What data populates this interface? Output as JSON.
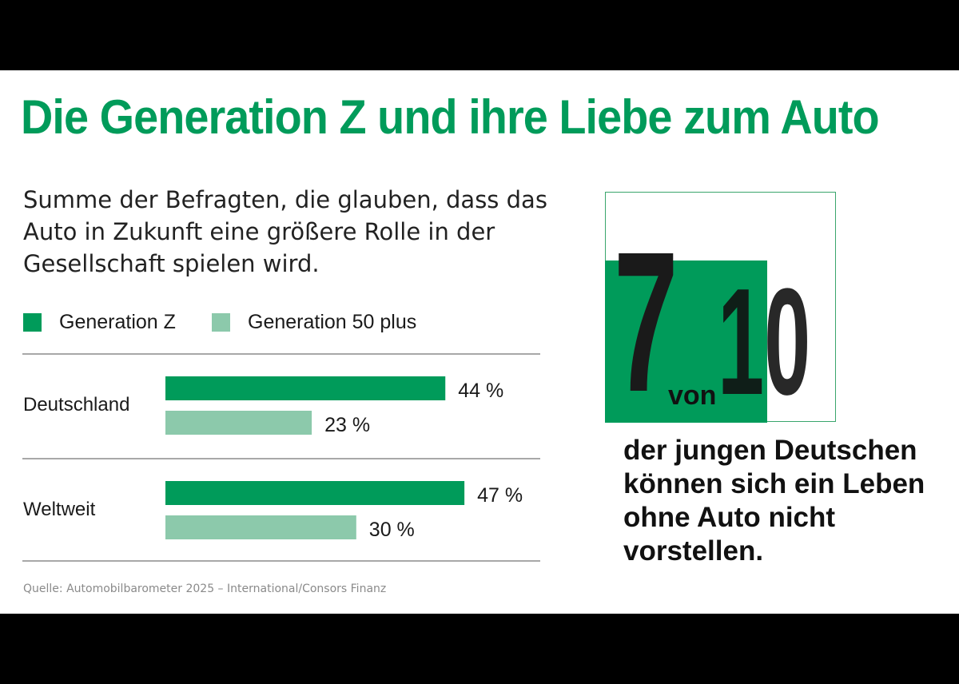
{
  "colors": {
    "accent": "#009b5a",
    "accent_light": "#8cc9ab",
    "text": "#1a1a1a",
    "rule": "#8c8c8c",
    "frame": "#3aa66c"
  },
  "title": "Die Generation Z und ihre Liebe zum Auto",
  "subtitle": "Summe der Befragten, die glauben, dass das Auto in Zukunft eine größere Rolle in der Gesellschaft spielen wird.",
  "source_note": "Quelle: Automobilbarometer 2025 – International/Consors Finanz",
  "chart_data": {
    "type": "bar",
    "orientation": "horizontal",
    "title": "Summe der Befragten, die glauben, dass das Auto in Zukunft eine größere Rolle in der Gesellschaft spielen wird.",
    "categories": [
      "Deutschland",
      "Weltweit"
    ],
    "series": [
      {
        "name": "Generation Z",
        "values": [
          44,
          47
        ],
        "labels": [
          "44 %",
          "47 %"
        ]
      },
      {
        "name": "Generation 50 plus",
        "values": [
          23,
          30
        ],
        "labels": [
          "23 %",
          "30 %"
        ]
      }
    ],
    "legend": [
      "Generation Z",
      "Generation 50 plus"
    ],
    "legend_position": "top-left",
    "unit": "%",
    "xlim": [
      0,
      50
    ],
    "grid": false
  },
  "stat": {
    "numerator": "7",
    "connector": "von",
    "denominator": "10",
    "text": "der jungen Deutschen können sich ein Leben ohne Auto nicht vorstellen."
  }
}
